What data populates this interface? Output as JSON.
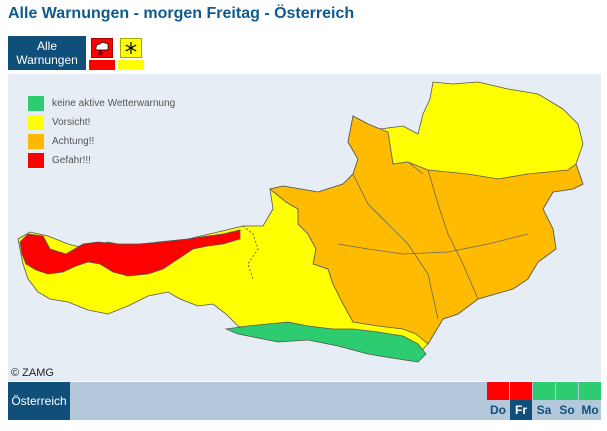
{
  "header": {
    "title": "Alle Warnungen - morgen Freitag - Österreich"
  },
  "types": {
    "all_label_line1": "Alle",
    "all_label_line2": "Warnungen",
    "items": [
      {
        "icon": "thunderstorm-warning-icon",
        "level_color": "#ff0000"
      },
      {
        "icon": "snow-warning-icon",
        "level_color": "#ffff00"
      }
    ]
  },
  "legend": [
    {
      "label": "keine aktive Wetterwarnung",
      "color": "#2ecc71"
    },
    {
      "label": "Vorsicht!",
      "color": "#ffff00"
    },
    {
      "label": "Achtung!!",
      "color": "#ffb800"
    },
    {
      "label": "Gefahr!!!",
      "color": "#ff0000"
    }
  ],
  "map": {
    "copyright": "© ZAMG",
    "colors": {
      "green": "#2ecc71",
      "yellow": "#ffff00",
      "orange": "#ffbb00",
      "red": "#ff0000"
    }
  },
  "bottom": {
    "region_label": "Österreich",
    "days": [
      {
        "label": "Do",
        "level_color": "#ff0000",
        "active": false
      },
      {
        "label": "Fr",
        "level_color": "#ff0000",
        "active": true
      },
      {
        "label": "Sa",
        "level_color": "#2ecc71",
        "active": false
      },
      {
        "label": "So",
        "level_color": "#2ecc71",
        "active": false
      },
      {
        "label": "Mo",
        "level_color": "#2ecc71",
        "active": false
      }
    ]
  }
}
